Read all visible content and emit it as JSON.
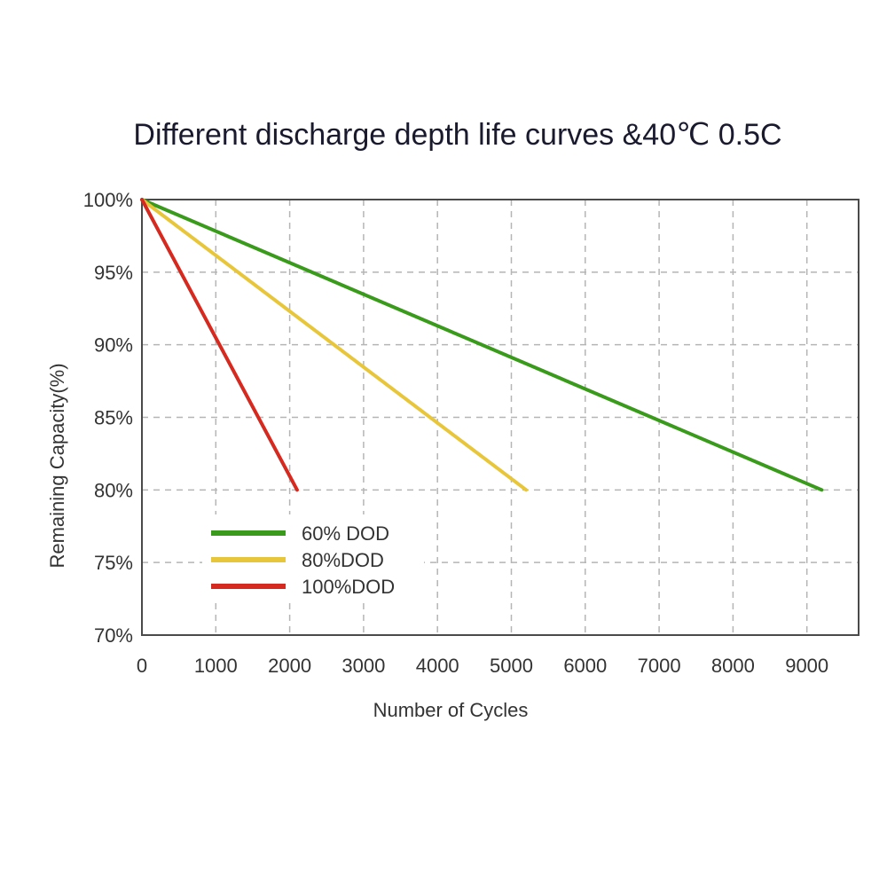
{
  "chart_data": {
    "type": "line",
    "title": "Different discharge depth life curves &40℃ 0.5C",
    "xlabel": "Number of Cycles",
    "ylabel": "Remaining Capacity(%)",
    "xlim": [
      0,
      9700
    ],
    "ylim": [
      70,
      100
    ],
    "x_ticks": [
      "0",
      "1000",
      "2000",
      "3000",
      "4000",
      "5000",
      "6000",
      "7000",
      "8000",
      "9000"
    ],
    "y_ticks": [
      "70%",
      "75%",
      "80%",
      "85%",
      "90%",
      "95%",
      "100%"
    ],
    "grid": true,
    "legend_position": "bottom-left",
    "series": [
      {
        "name": "60% DOD",
        "color": "#3a9a1c",
        "points": [
          [
            0,
            100
          ],
          [
            9200,
            80
          ]
        ]
      },
      {
        "name": "80%DOD",
        "color": "#e8c63c",
        "points": [
          [
            0,
            100
          ],
          [
            5200,
            80
          ]
        ]
      },
      {
        "name": "100%DOD",
        "color": "#d42a20",
        "points": [
          [
            0,
            100
          ],
          [
            2100,
            80
          ]
        ]
      }
    ]
  }
}
